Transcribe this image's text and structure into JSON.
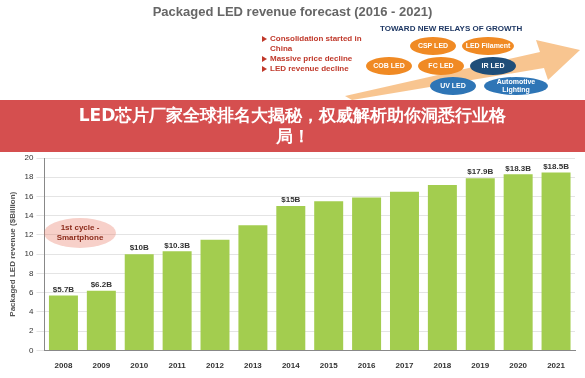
{
  "chart_data": {
    "type": "bar",
    "title": "Packaged LED revenue forecast (2016 - 2021)",
    "y_label": "Packaged LED revenue ($Billion)",
    "categories": [
      "2008",
      "2009",
      "2010",
      "2011",
      "2012",
      "2013",
      "2014",
      "2015",
      "2016",
      "2017",
      "2018",
      "2019",
      "2020",
      "2021"
    ],
    "values": [
      5.7,
      6.2,
      10,
      10.3,
      11.5,
      13,
      15,
      15.5,
      15.9,
      16.5,
      17.2,
      17.9,
      18.3,
      18.5
    ],
    "value_labels": [
      "$5.7B",
      "$6.2B",
      "$10B",
      "$10.3B",
      null,
      null,
      "$15B",
      null,
      null,
      null,
      null,
      "$17.9B",
      "$18.3B",
      "$18.5B"
    ],
    "color": "#a3cd4f",
    "ylim": [
      0,
      20
    ],
    "yticks": [
      0,
      2,
      4,
      6,
      8,
      10,
      12,
      14,
      16,
      18,
      20
    ],
    "grid": true,
    "data_labels": true,
    "annotations": {
      "banner": "LED芯片厂家全球排名大揭秘，权威解析助你洞悉行业格局！",
      "cycle": "1st cycle - Smartphone",
      "consolidation": [
        "Consolidation started in China",
        "Massive price decline",
        "LED revenue decline"
      ],
      "growth_title": "TOWARD NEW RELAYS OF GROWTH",
      "bubbles": [
        "CSP LED",
        "LED Filament",
        "COB LED",
        "FC LED",
        "IR LED",
        "UV LED",
        "Automotive Lighting"
      ]
    }
  }
}
